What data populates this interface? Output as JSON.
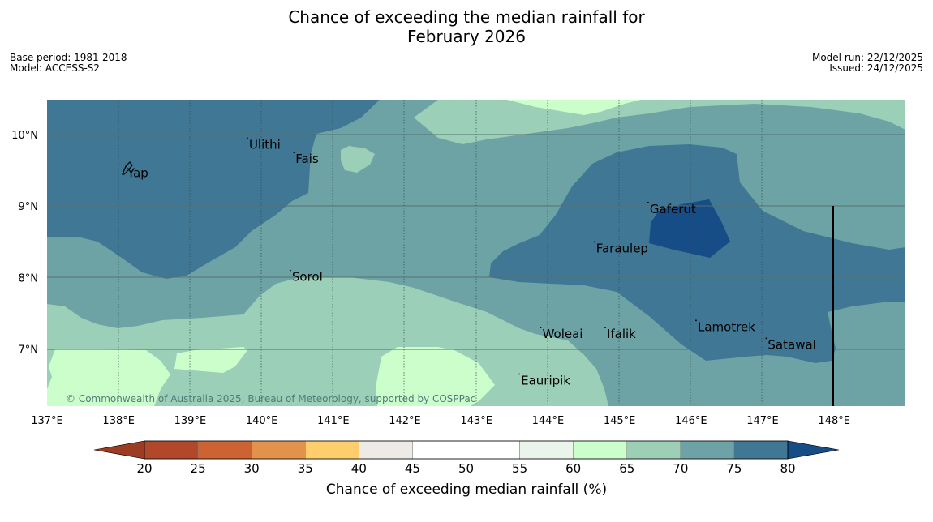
{
  "title": {
    "line1": "Chance of exceeding the median rainfall for",
    "line2": "February 2026"
  },
  "meta_left": {
    "base_period": "Base period: 1981-2018",
    "model": "Model: ACCESS-S2"
  },
  "meta_right": {
    "model_run": "Model run: 22/12/2025",
    "issued": "Issued: 24/12/2025"
  },
  "map": {
    "lon_range": [
      137,
      149
    ],
    "lat_range": [
      6.2,
      10.5
    ],
    "lon_ticks": [
      "137°E",
      "138°E",
      "139°E",
      "140°E",
      "141°E",
      "142°E",
      "143°E",
      "144°E",
      "145°E",
      "146°E",
      "147°E",
      "148°E"
    ],
    "lat_ticks": [
      "10°N",
      "9°N",
      "8°N",
      "7°N"
    ],
    "lat_tick_values": [
      10,
      9,
      8,
      7
    ],
    "places": [
      {
        "name": "Ulithi",
        "lon": 139.8,
        "lat": 9.95
      },
      {
        "name": "Fais",
        "lon": 140.45,
        "lat": 9.75
      },
      {
        "name": "Yap",
        "lon": 138.1,
        "lat": 9.55
      },
      {
        "name": "Gaferut",
        "lon": 145.4,
        "lat": 9.05
      },
      {
        "name": "Faraulep",
        "lon": 144.65,
        "lat": 8.5
      },
      {
        "name": "Sorol",
        "lon": 140.4,
        "lat": 8.1
      },
      {
        "name": "Lamotrek",
        "lon": 146.07,
        "lat": 7.4
      },
      {
        "name": "Woleai",
        "lon": 143.9,
        "lat": 7.3
      },
      {
        "name": "Ifalik",
        "lon": 144.8,
        "lat": 7.3
      },
      {
        "name": "Satawal",
        "lon": 147.05,
        "lat": 7.15
      },
      {
        "name": "Eauripik",
        "lon": 143.6,
        "lat": 6.65
      }
    ],
    "copyright": "© Commonwealth of Australia 2025, Bureau of Meteorology, supported by COSPPac"
  },
  "colorbar": {
    "ticks": [
      "20",
      "25",
      "30",
      "35",
      "40",
      "45",
      "50",
      "55",
      "60",
      "65",
      "70",
      "75",
      "80"
    ],
    "colors": [
      "#b1482a",
      "#cd6233",
      "#e2924a",
      "#fdce6b",
      "#eeeae5",
      "#ffffff",
      "#ffffff",
      "#eaf4ea",
      "#ccfecc",
      "#9ccfb6",
      "#6da3a6",
      "#407795"
    ],
    "under_color": "#9c3c22",
    "over_color": "#174d86",
    "label": "Chance of exceeding median rainfall (%)"
  }
}
